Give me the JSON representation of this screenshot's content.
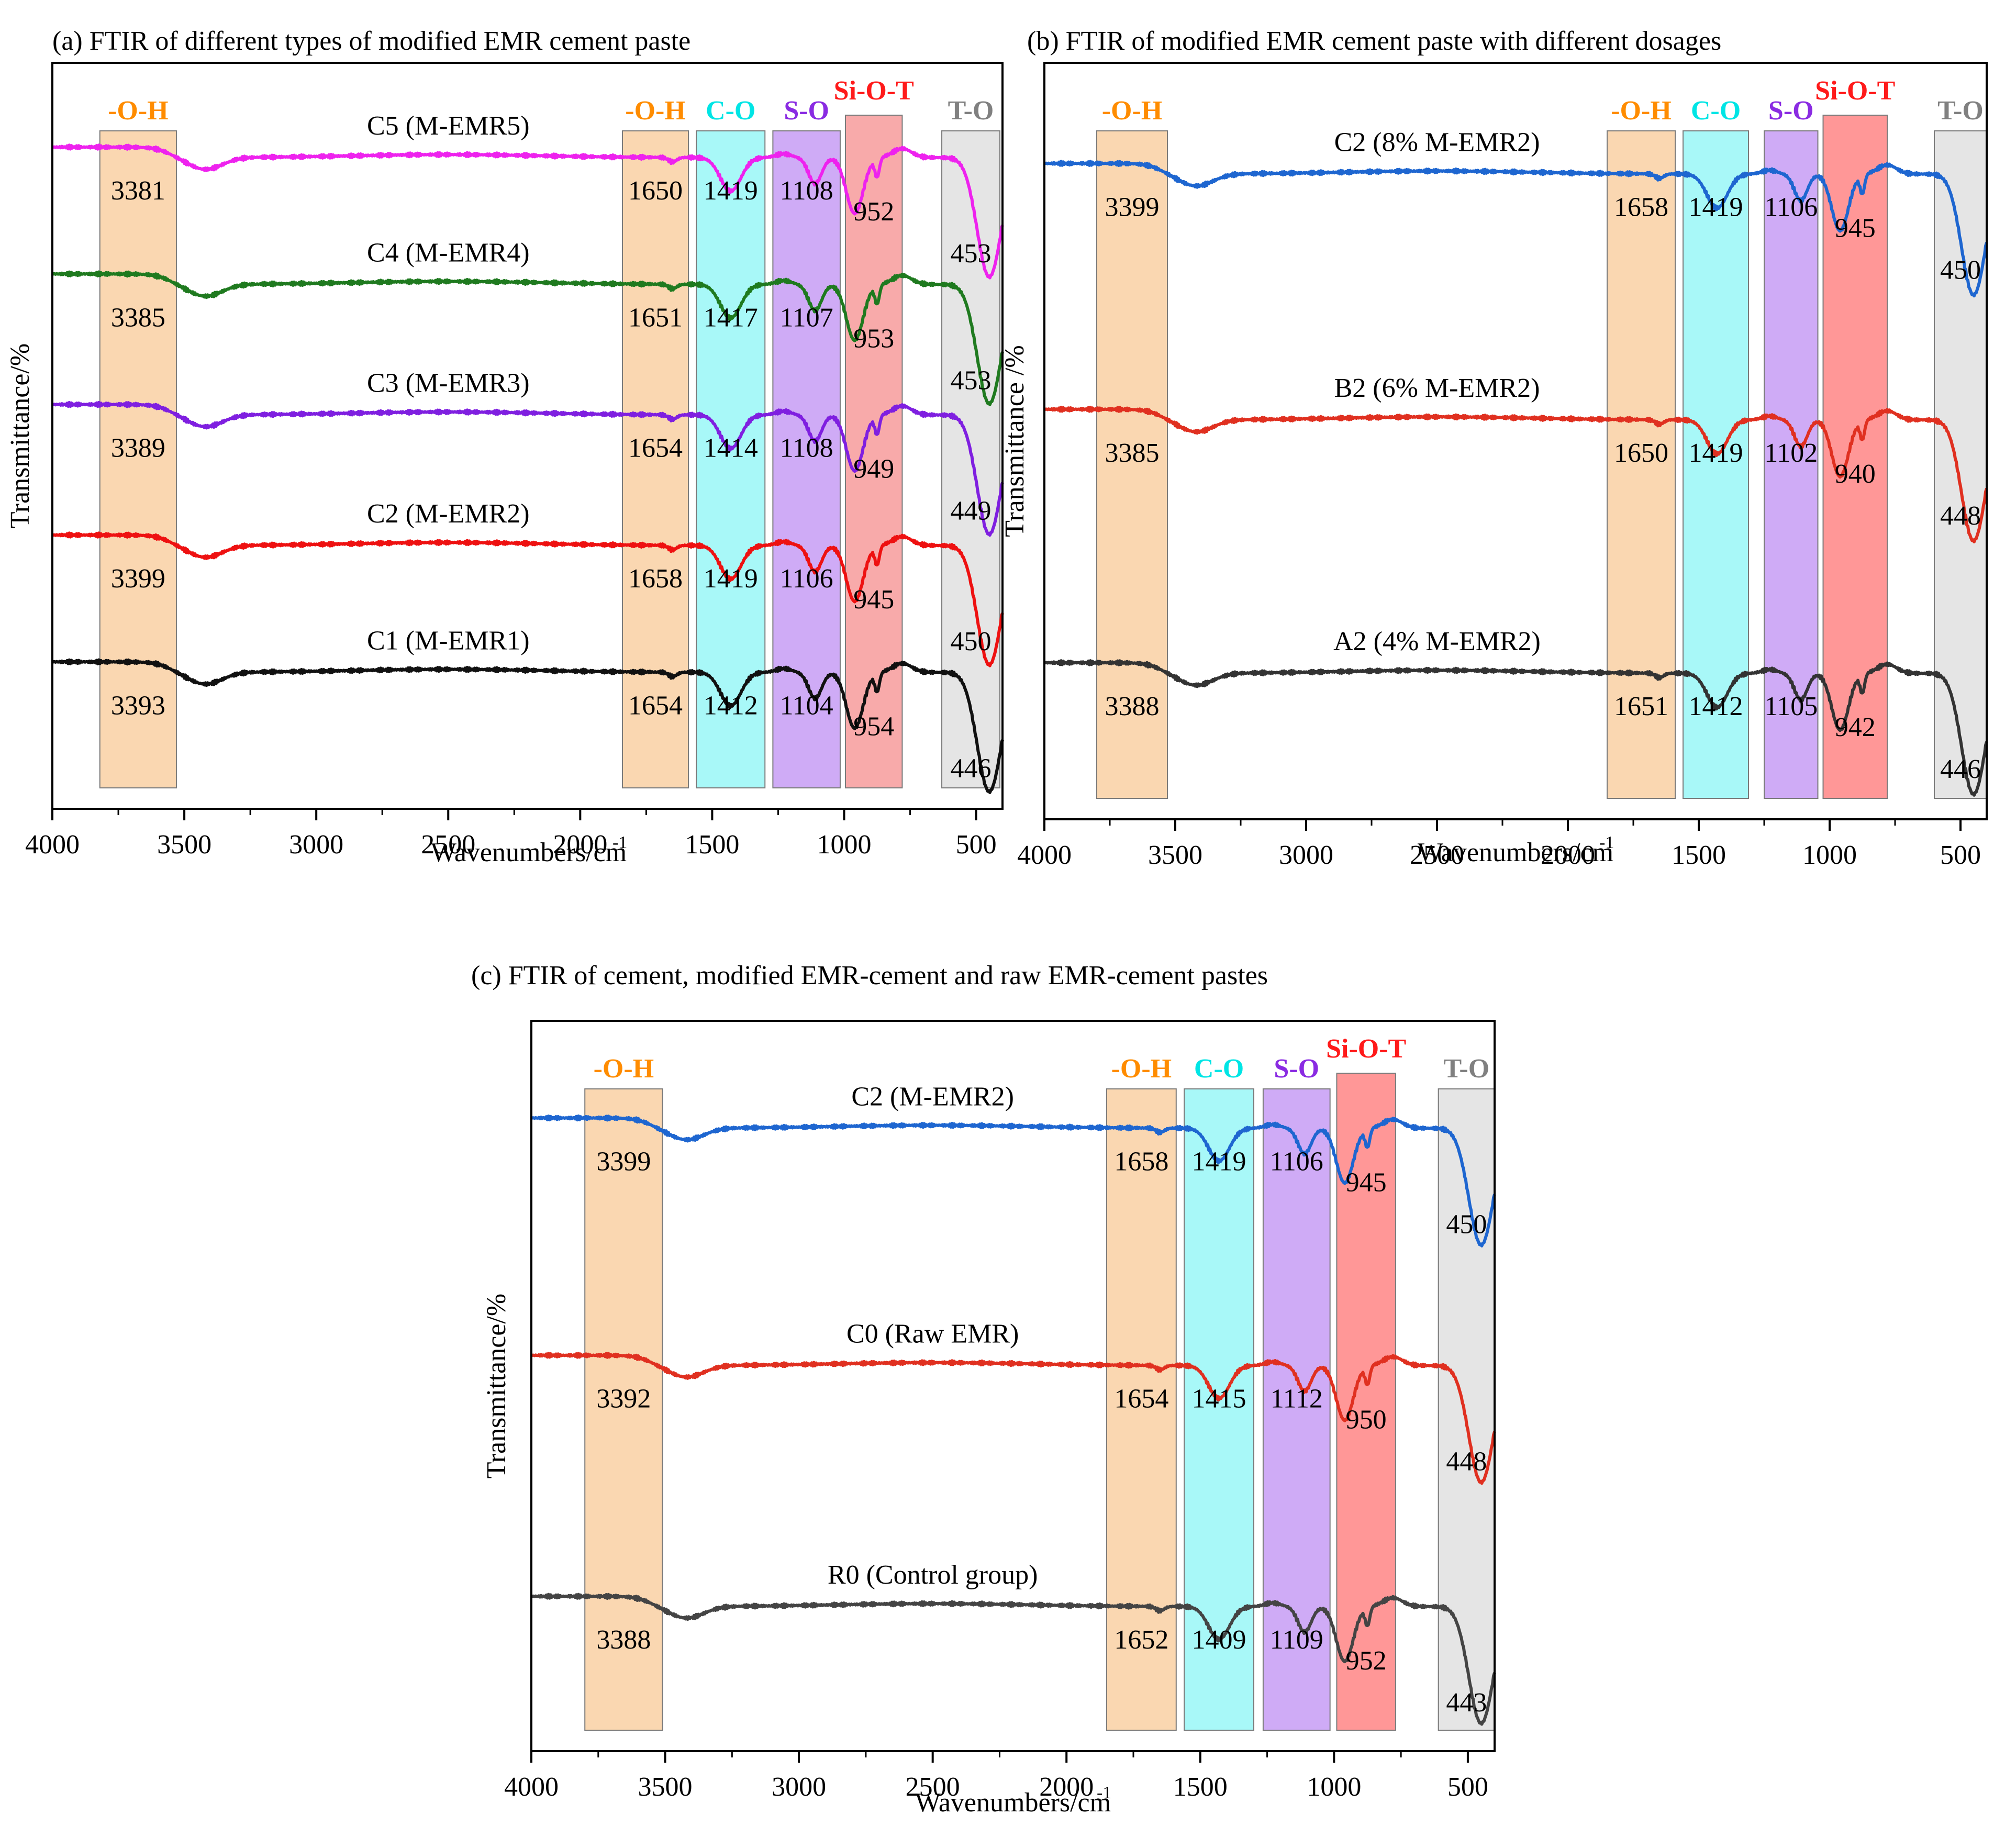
{
  "chart_data": [
    {
      "id": "a",
      "type": "line",
      "title": "(a) FTIR of  different types of modified EMR cement paste",
      "xlabel": "Wavenumbers/cm",
      "xlabel_sup": "-1",
      "ylabel": "Transmittance/%",
      "xlim": [
        4000,
        400
      ],
      "xticks": [
        4000,
        3500,
        3000,
        2500,
        2000,
        1500,
        1000,
        500
      ],
      "bands": [
        {
          "label": "-O-H",
          "from": 3820,
          "to": 3530,
          "color": "#f9d3a9",
          "label_color": "#ff8c00"
        },
        {
          "label": "-O-H",
          "from": 1840,
          "to": 1590,
          "color": "#f9d3a9",
          "label_color": "#ff8c00"
        },
        {
          "label": "C-O",
          "from": 1560,
          "to": 1300,
          "color": "#9ff7f7",
          "label_color": "#00e5e5"
        },
        {
          "label": "S-O",
          "from": 1270,
          "to": 1015,
          "color": "#caa2f5",
          "label_color": "#8a2be2"
        },
        {
          "label": "Si-O-T",
          "from": 995,
          "to": 780,
          "color": "#f7a1a1",
          "label_color": "#ff1a1a"
        },
        {
          "label": "T-O",
          "from": 630,
          "to": 410,
          "color": "#e2e2e2",
          "label_color": "#808080"
        }
      ],
      "series": [
        {
          "name": "C5 (M-EMR5)",
          "color": "#ee22ee",
          "baseline": 0.12,
          "peaks": [
            "3381",
            "1650",
            "1419",
            "1108",
            "952",
            "453"
          ]
        },
        {
          "name": "C4 (M-EMR4)",
          "color": "#1f7a1f",
          "baseline": 0.29,
          "peaks": [
            "3385",
            "1651",
            "1417",
            "1107",
            "953",
            "453"
          ]
        },
        {
          "name": "C3 (M-EMR3)",
          "color": "#7f1fe0",
          "baseline": 0.465,
          "peaks": [
            "3389",
            "1654",
            "1414",
            "1108",
            "949",
            "449"
          ]
        },
        {
          "name": "C2 (M-EMR2)",
          "color": "#ee1111",
          "baseline": 0.64,
          "peaks": [
            "3399",
            "1658",
            "1419",
            "1106",
            "945",
            "450"
          ]
        },
        {
          "name": "C1 (M-EMR1)",
          "color": "#111111",
          "baseline": 0.81,
          "peaks": [
            "3393",
            "1654",
            "1412",
            "1104",
            "954",
            "446"
          ]
        }
      ]
    },
    {
      "id": "b",
      "type": "line",
      "title": "(b) FTIR of modified EMR cement paste with different dosages",
      "xlabel": "Wavenumbers/cm",
      "xlabel_sup": "-1",
      "ylabel": "Transmittance /%",
      "xlim": [
        4000,
        400
      ],
      "xticks": [
        4000,
        3500,
        3000,
        2500,
        2000,
        1500,
        1000,
        500
      ],
      "bands": [
        {
          "label": "-O-H",
          "from": 3800,
          "to": 3530,
          "color": "#f9d3a9",
          "label_color": "#ff8c00"
        },
        {
          "label": "-O-H",
          "from": 1850,
          "to": 1590,
          "color": "#f9d3a9",
          "label_color": "#ff8c00"
        },
        {
          "label": "C-O",
          "from": 1560,
          "to": 1310,
          "color": "#9ff7f7",
          "label_color": "#00e5e5"
        },
        {
          "label": "S-O",
          "from": 1250,
          "to": 1045,
          "color": "#caa2f5",
          "label_color": "#8a2be2"
        },
        {
          "label": "Si-O-T",
          "from": 1025,
          "to": 780,
          "color": "#ff8c8c",
          "label_color": "#ff1a1a"
        },
        {
          "label": "T-O",
          "from": 600,
          "to": 400,
          "color": "#e2e2e2",
          "label_color": "#808080"
        }
      ],
      "series": [
        {
          "name": "C2 (8% M-EMR2)",
          "color": "#1e66d0",
          "baseline": 0.14,
          "peaks": [
            "3399",
            "1658",
            "1419",
            "1106",
            "945",
            "450"
          ]
        },
        {
          "name": "B2 (6% M-EMR2)",
          "color": "#e03020",
          "baseline": 0.465,
          "peaks": [
            "3385",
            "1650",
            "1419",
            "1102",
            "940",
            "448"
          ]
        },
        {
          "name": "A2 (4% M-EMR2)",
          "color": "#333333",
          "baseline": 0.8,
          "peaks": [
            "3388",
            "1651",
            "1412",
            "1105",
            "942",
            "446"
          ]
        }
      ]
    },
    {
      "id": "c",
      "type": "line",
      "title": "(c) FTIR of cement, modified EMR-cement and raw EMR-cement pastes",
      "xlabel": "Wavenumbers/cm",
      "xlabel_sup": "-1",
      "ylabel": "Transmittance/%",
      "xlim": [
        4000,
        400
      ],
      "xticks": [
        4000,
        3500,
        3000,
        2500,
        2000,
        1500,
        1000,
        500
      ],
      "bands": [
        {
          "label": "-O-H",
          "from": 3800,
          "to": 3510,
          "color": "#f9d3a9",
          "label_color": "#ff8c00"
        },
        {
          "label": "-O-H",
          "from": 1850,
          "to": 1590,
          "color": "#f9d3a9",
          "label_color": "#ff8c00"
        },
        {
          "label": "C-O",
          "from": 1560,
          "to": 1300,
          "color": "#9ff7f7",
          "label_color": "#00e5e5"
        },
        {
          "label": "S-O",
          "from": 1265,
          "to": 1015,
          "color": "#caa2f5",
          "label_color": "#8a2be2"
        },
        {
          "label": "Si-O-T",
          "from": 990,
          "to": 770,
          "color": "#ff8c8c",
          "label_color": "#ff1a1a"
        },
        {
          "label": "T-O",
          "from": 610,
          "to": 400,
          "color": "#e2e2e2",
          "label_color": "#808080"
        }
      ],
      "series": [
        {
          "name": "C2 (M-EMR2)",
          "color": "#1e66d0",
          "baseline": 0.14,
          "peaks": [
            "3399",
            "1658",
            "1419",
            "1106",
            "945",
            "450"
          ]
        },
        {
          "name": "C0 (Raw EMR)",
          "color": "#e03020",
          "baseline": 0.465,
          "peaks": [
            "3392",
            "1654",
            "1415",
            "1112",
            "950",
            "448"
          ]
        },
        {
          "name": "R0 (Control group)",
          "color": "#444444",
          "baseline": 0.795,
          "peaks": [
            "3388",
            "1652",
            "1409",
            "1109",
            "952",
            "443"
          ]
        }
      ]
    }
  ]
}
